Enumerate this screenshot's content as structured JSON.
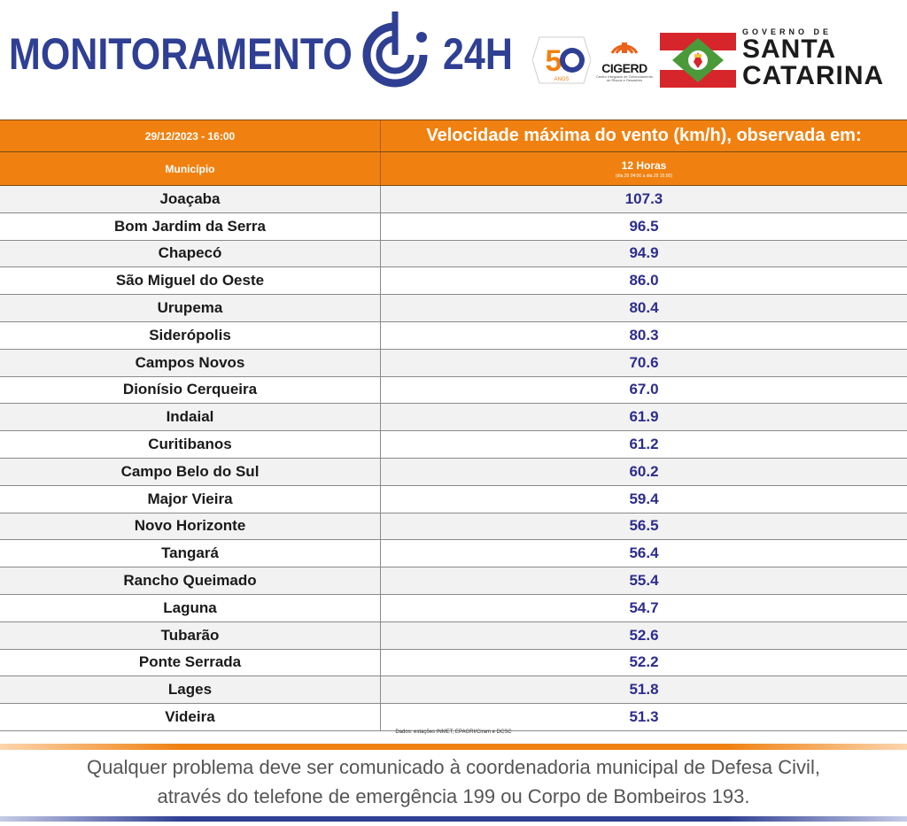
{
  "header": {
    "title_left": "MONITORAMENTO",
    "title_right": "24H",
    "logo_50": "50",
    "logo_50_sub": "ANOS",
    "cigerd": "CIGERD",
    "cigerd_sub": "Centro Integrado de Gerenciamento de Riscos e Desastres",
    "gov_small": "GOVERNO DE",
    "gov_line1": "SANTA",
    "gov_line2": "CATARINA",
    "brand_color": "#2f3f93",
    "accent_color": "#f08111"
  },
  "table": {
    "datetime": "29/12/2023 - 16:00",
    "main_title": "Velocidade máxima do vento (km/h), observada em:",
    "col_municipio": "Município",
    "col_period": "12 Horas",
    "col_period_sub": "(dia 29 04:00 a dia 29 16:00)",
    "rows": [
      {
        "municipio": "Joaçaba",
        "valor": "107.3"
      },
      {
        "municipio": "Bom Jardim da Serra",
        "valor": "96.5"
      },
      {
        "municipio": "Chapecó",
        "valor": "94.9"
      },
      {
        "municipio": "São Miguel do Oeste",
        "valor": "86.0"
      },
      {
        "municipio": "Urupema",
        "valor": "80.4"
      },
      {
        "municipio": "Siderópolis",
        "valor": "80.3"
      },
      {
        "municipio": "Campos Novos",
        "valor": "70.6"
      },
      {
        "municipio": "Dionísio Cerqueira",
        "valor": "67.0"
      },
      {
        "municipio": "Indaial",
        "valor": "61.9"
      },
      {
        "municipio": "Curitibanos",
        "valor": "61.2"
      },
      {
        "municipio": "Campo Belo do Sul",
        "valor": "60.2"
      },
      {
        "municipio": "Major Vieira",
        "valor": "59.4"
      },
      {
        "municipio": "Novo Horizonte",
        "valor": "56.5"
      },
      {
        "municipio": "Tangará",
        "valor": "56.4"
      },
      {
        "municipio": "Rancho Queimado",
        "valor": "55.4"
      },
      {
        "municipio": "Laguna",
        "valor": "54.7"
      },
      {
        "municipio": "Tubarão",
        "valor": "52.6"
      },
      {
        "municipio": "Ponte Serrada",
        "valor": "52.2"
      },
      {
        "municipio": "Lages",
        "valor": "51.8"
      },
      {
        "municipio": "Videira",
        "valor": "51.3"
      }
    ],
    "source": "Dados: estações INMET, EPAGRI/Ciram e DCSC"
  },
  "footer": {
    "line1": "Qualquer problema deve ser comunicado à coordenadoria municipal de Defesa Civil,",
    "line2": "através do telefone de emergência 199 ou Corpo de Bombeiros 193."
  }
}
